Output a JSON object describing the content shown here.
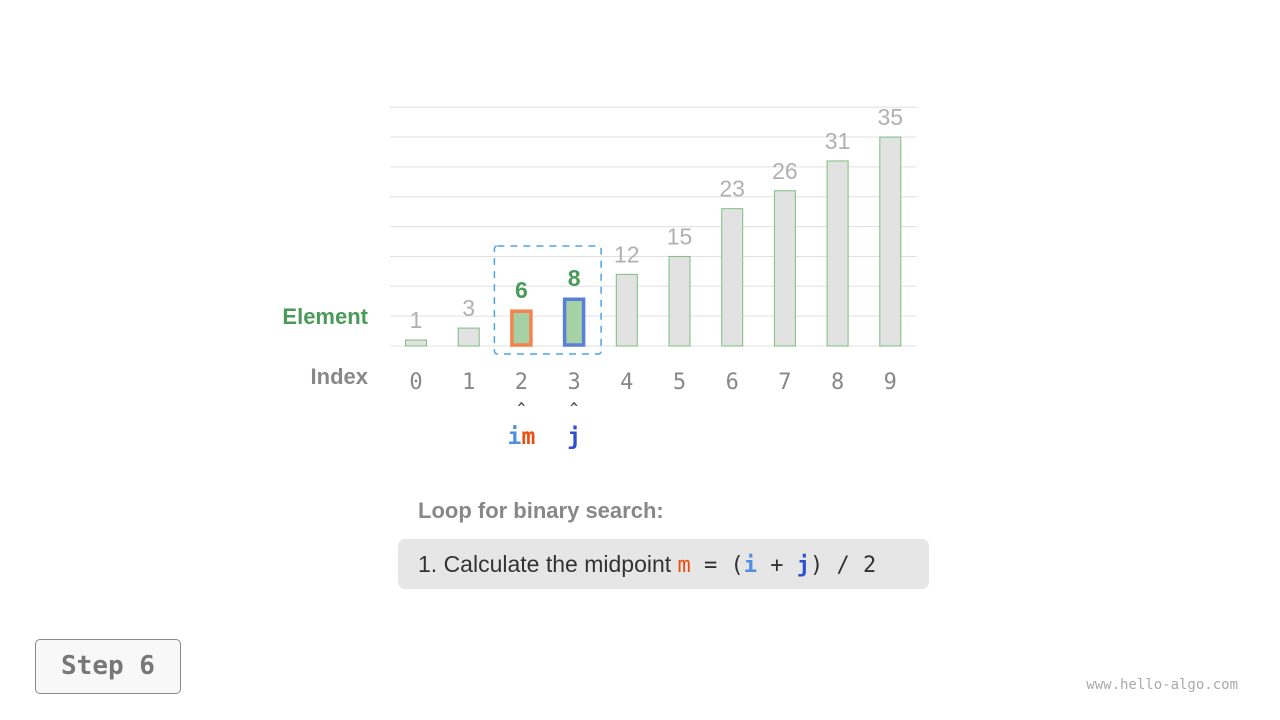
{
  "labels": {
    "element": "Element",
    "index": "Index"
  },
  "array": [
    1,
    3,
    6,
    8,
    12,
    15,
    23,
    26,
    31,
    35
  ],
  "highlight": {
    "m": 2,
    "j": 3,
    "i": 2
  },
  "pointers": {
    "im_i": "i",
    "im_m": "m",
    "j": "j"
  },
  "colors": {
    "element_label": "#4a9a5a",
    "index_label": "#888888",
    "bar_fill": "#e2e2e2",
    "bar_stroke": "#7bbf7f",
    "active_fill": "#a5d1a5",
    "m_border": "#f5834f",
    "j_border": "#5a7fd8",
    "i_color": "#4e8fe0",
    "m_color": "#ee4d10",
    "j_color": "#2e4fd0",
    "range_box": "#4ea3e6",
    "value_active": "#4a9a5a",
    "value_inactive": "#b0b0b0"
  },
  "loop": {
    "title": "Loop for binary search:",
    "step_text": "1. Calculate the midpoint ",
    "m": "m",
    "eq": " = (",
    "i": "i",
    "plus": " + ",
    "j": "j",
    "tail": ") / 2"
  },
  "step_label": "Step 6",
  "watermark": "www.hello-algo.com"
}
